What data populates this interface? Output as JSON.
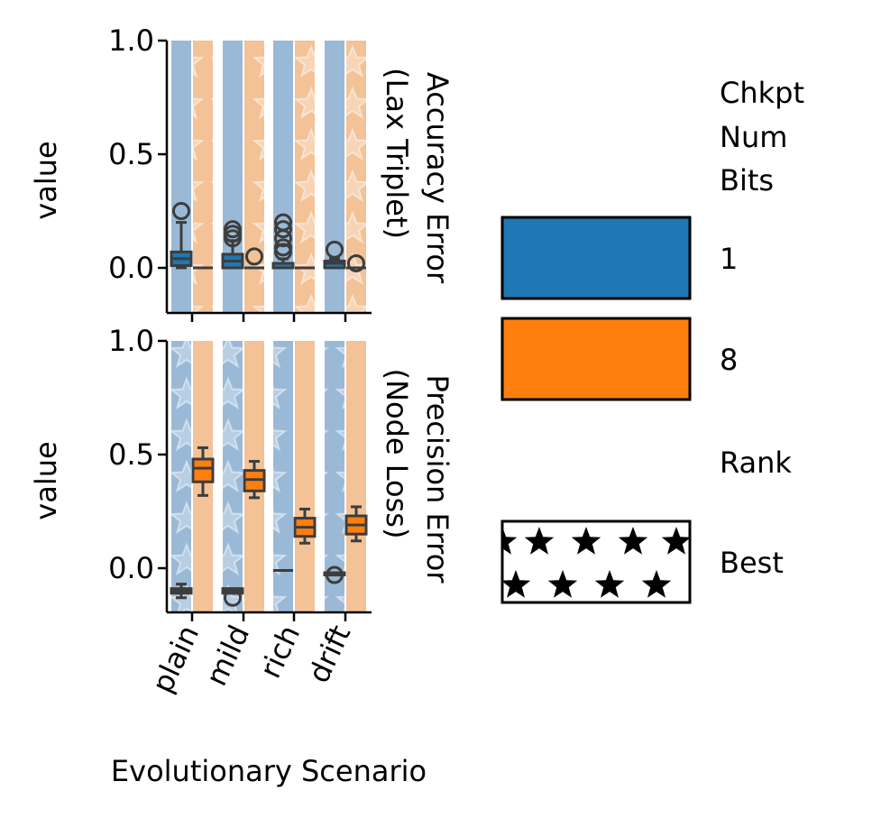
{
  "chart_data": {
    "type": "box",
    "xlabel": "Evolutionary Scenario",
    "ylabel": "value",
    "categories": [
      "plain",
      "mild",
      "rich",
      "drift"
    ],
    "yticks": [
      "1.0",
      "0.5",
      "0.0"
    ],
    "ylim": [
      -0.2,
      1.0
    ],
    "hue_colors": {
      "1": "#1f77b4",
      "8": "#ff7f0e"
    },
    "background_colors": {
      "1": "#9ab9d6",
      "8": "#f3c296"
    },
    "panels": [
      {
        "row_label_line1": "Accuracy Error",
        "row_label_line2": "(Lax Triplet)",
        "best_hue": "8",
        "series": [
          {
            "name": "1",
            "boxes": [
              {
                "q1": 0.01,
                "median": 0.04,
                "q3": 0.07,
                "whisker_low": 0.0,
                "whisker_high": 0.2,
                "outliers": [
                  0.25
                ]
              },
              {
                "q1": 0.0,
                "median": 0.03,
                "q3": 0.06,
                "whisker_low": 0.0,
                "whisker_high": 0.12,
                "outliers": [
                  0.13,
                  0.15,
                  0.17
                ]
              },
              {
                "q1": 0.0,
                "median": 0.0,
                "q3": 0.02,
                "whisker_low": 0.0,
                "whisker_high": 0.04,
                "outliers": [
                  0.07,
                  0.09,
                  0.13,
                  0.17,
                  0.2
                ]
              },
              {
                "q1": 0.0,
                "median": 0.02,
                "q3": 0.03,
                "whisker_low": 0.0,
                "whisker_high": 0.04,
                "outliers": [
                  0.08
                ]
              }
            ]
          },
          {
            "name": "8",
            "boxes": [
              {
                "q1": 0.0,
                "median": 0.0,
                "q3": 0.0,
                "whisker_low": 0.0,
                "whisker_high": 0.0,
                "outliers": []
              },
              {
                "q1": 0.0,
                "median": 0.0,
                "q3": 0.0,
                "whisker_low": 0.0,
                "whisker_high": 0.0,
                "outliers": [
                  0.05
                ]
              },
              {
                "q1": 0.0,
                "median": 0.0,
                "q3": 0.0,
                "whisker_low": 0.0,
                "whisker_high": 0.0,
                "outliers": []
              },
              {
                "q1": 0.0,
                "median": 0.0,
                "q3": 0.0,
                "whisker_low": 0.0,
                "whisker_high": 0.0,
                "outliers": [
                  0.02
                ]
              }
            ]
          }
        ]
      },
      {
        "row_label_line1": "Precision Error",
        "row_label_line2": "(Node Loss)",
        "best_hue": "1",
        "series": [
          {
            "name": "1",
            "boxes": [
              {
                "q1": -0.11,
                "median": -0.1,
                "q3": -0.09,
                "whisker_low": -0.13,
                "whisker_high": -0.07,
                "outliers": []
              },
              {
                "q1": -0.11,
                "median": -0.1,
                "q3": -0.09,
                "whisker_low": -0.11,
                "whisker_high": -0.09,
                "outliers": [
                  -0.13
                ]
              },
              {
                "q1": -0.01,
                "median": -0.01,
                "q3": -0.01,
                "whisker_low": -0.01,
                "whisker_high": -0.01,
                "outliers": []
              },
              {
                "q1": -0.03,
                "median": -0.02,
                "q3": -0.02,
                "whisker_low": -0.03,
                "whisker_high": -0.02,
                "outliers": [
                  -0.03
                ]
              }
            ]
          },
          {
            "name": "8",
            "boxes": [
              {
                "q1": 0.38,
                "median": 0.44,
                "q3": 0.48,
                "whisker_low": 0.32,
                "whisker_high": 0.53,
                "outliers": []
              },
              {
                "q1": 0.34,
                "median": 0.39,
                "q3": 0.43,
                "whisker_low": 0.31,
                "whisker_high": 0.47,
                "outliers": []
              },
              {
                "q1": 0.14,
                "median": 0.18,
                "q3": 0.22,
                "whisker_low": 0.11,
                "whisker_high": 0.26,
                "outliers": []
              },
              {
                "q1": 0.15,
                "median": 0.19,
                "q3": 0.23,
                "whisker_low": 0.12,
                "whisker_high": 0.27,
                "outliers": []
              }
            ]
          }
        ]
      }
    ],
    "legend": {
      "title_lines": [
        "Chkpt",
        "Num",
        "Bits"
      ],
      "entries": [
        {
          "label": "1",
          "color": "#1f77b4"
        },
        {
          "label": "8",
          "color": "#ff7f0e"
        }
      ],
      "section2_title": "Rank",
      "section2_entries": [
        {
          "label": "Best",
          "pattern": "stars"
        }
      ],
      "placement": "right"
    }
  }
}
